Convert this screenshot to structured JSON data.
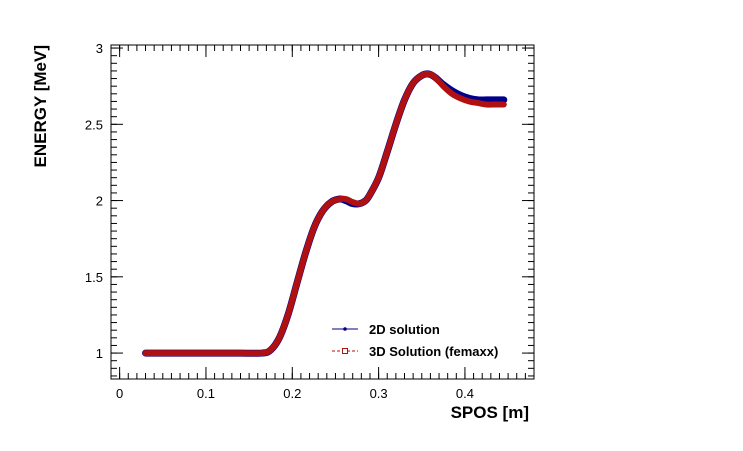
{
  "chart_data": {
    "type": "line",
    "xlabel": "SPOS [m]",
    "ylabel": "ENERGY [MeV]",
    "xlim": [
      -0.01,
      0.48
    ],
    "ylim": [
      0.83,
      3.02
    ],
    "x_ticks": [
      "0",
      "0.1",
      "0.2",
      "0.3",
      "0.4"
    ],
    "x_tick_values": [
      0,
      0.1,
      0.2,
      0.3,
      0.4
    ],
    "y_ticks": [
      "1",
      "1.5",
      "2",
      "2.5",
      "3"
    ],
    "y_tick_values": [
      1,
      1.5,
      2,
      2.5,
      3
    ],
    "grid": false,
    "legend_position": "bottom-right",
    "series": [
      {
        "name": "2D solution",
        "color": "#00008b",
        "x": [
          0.03,
          0.06,
          0.1,
          0.14,
          0.165,
          0.175,
          0.185,
          0.195,
          0.205,
          0.215,
          0.225,
          0.235,
          0.245,
          0.255,
          0.262,
          0.27,
          0.278,
          0.285,
          0.29,
          0.3,
          0.31,
          0.32,
          0.33,
          0.34,
          0.35,
          0.358,
          0.365,
          0.375,
          0.385,
          0.395,
          0.405,
          0.415,
          0.425,
          0.435,
          0.445
        ],
        "y": [
          1.0,
          1.0,
          1.0,
          1.0,
          1.0,
          1.02,
          1.1,
          1.25,
          1.45,
          1.65,
          1.82,
          1.93,
          1.99,
          2.01,
          2.0,
          1.98,
          1.98,
          2.0,
          2.04,
          2.15,
          2.32,
          2.5,
          2.66,
          2.77,
          2.82,
          2.83,
          2.81,
          2.76,
          2.72,
          2.69,
          2.67,
          2.66,
          2.66,
          2.66,
          2.66
        ]
      },
      {
        "name": "3D Solution (femaxx)",
        "color": "#b01010",
        "x": [
          0.03,
          0.06,
          0.1,
          0.14,
          0.165,
          0.175,
          0.185,
          0.195,
          0.205,
          0.215,
          0.225,
          0.235,
          0.245,
          0.255,
          0.262,
          0.27,
          0.278,
          0.285,
          0.29,
          0.3,
          0.31,
          0.32,
          0.33,
          0.34,
          0.35,
          0.358,
          0.365,
          0.375,
          0.385,
          0.395,
          0.405,
          0.415,
          0.425,
          0.435,
          0.445
        ],
        "y": [
          1.0,
          1.0,
          1.0,
          1.0,
          1.0,
          1.02,
          1.1,
          1.25,
          1.45,
          1.65,
          1.82,
          1.93,
          1.99,
          2.01,
          2.01,
          1.99,
          1.98,
          2.0,
          2.04,
          2.15,
          2.32,
          2.5,
          2.66,
          2.77,
          2.82,
          2.83,
          2.81,
          2.75,
          2.7,
          2.67,
          2.65,
          2.64,
          2.63,
          2.63,
          2.63
        ]
      }
    ]
  }
}
